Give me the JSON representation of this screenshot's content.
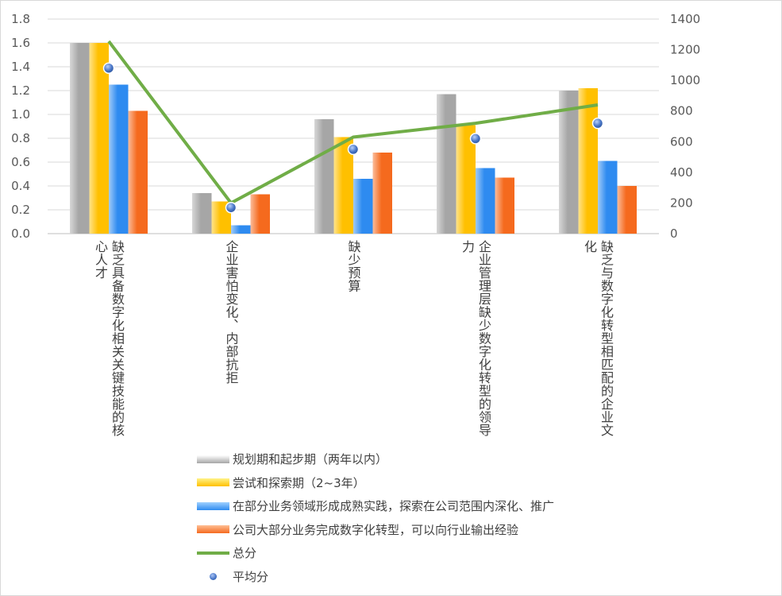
{
  "chart_data": {
    "type": "bar",
    "categories": [
      [
        "缺乏具备数字化相关关键技能",
        "的核心人才"
      ],
      [
        "企业害怕变化、内部抗拒"
      ],
      [
        "缺少预算"
      ],
      [
        "企业管理层缺少数字化转型的",
        "领导力"
      ],
      [
        "缺乏与数字化转型相匹配的企",
        "业文化"
      ]
    ],
    "series": [
      {
        "name": "规划期和起步期（两年以内）",
        "type": "bar",
        "axis": "left",
        "color": "#a6a6a6",
        "values": [
          1.6,
          0.34,
          0.96,
          1.17,
          1.2
        ]
      },
      {
        "name": "尝试和探索期（2~3年）",
        "type": "bar",
        "axis": "left",
        "color": "#ffc000",
        "values": [
          1.6,
          0.27,
          0.81,
          0.91,
          1.22
        ]
      },
      {
        "name": "在部分业务领域形成成熟实践，探索在公司范围内深化、推广",
        "type": "bar",
        "axis": "left",
        "color": "#2e8bf0",
        "values": [
          1.25,
          0.07,
          0.46,
          0.55,
          0.61
        ]
      },
      {
        "name": "公司大部分业务完成数字化转型，可以向行业输出经验",
        "type": "bar",
        "axis": "left",
        "color": "#f56a1e",
        "values": [
          1.03,
          0.33,
          0.68,
          0.47,
          0.4
        ]
      },
      {
        "name": "总分",
        "type": "line",
        "axis": "right",
        "color": "#70ad47",
        "values": [
          1255,
          200,
          630,
          720,
          840
        ]
      },
      {
        "name": "平均分",
        "type": "scatter",
        "axis": "right",
        "color": "#4472c4",
        "values": [
          1080,
          170,
          550,
          620,
          720
        ]
      }
    ],
    "y_left": {
      "min": 0,
      "max": 1.8,
      "step": 0.2,
      "ticks": [
        "0.0",
        "0.2",
        "0.4",
        "0.6",
        "0.8",
        "1.0",
        "1.2",
        "1.4",
        "1.6",
        "1.8"
      ]
    },
    "y_right": {
      "min": 0,
      "max": 1400,
      "step": 200,
      "ticks": [
        "0",
        "200",
        "400",
        "600",
        "800",
        "1000",
        "1200",
        "1400"
      ]
    },
    "gridlines": true,
    "legend_position": "bottom"
  }
}
